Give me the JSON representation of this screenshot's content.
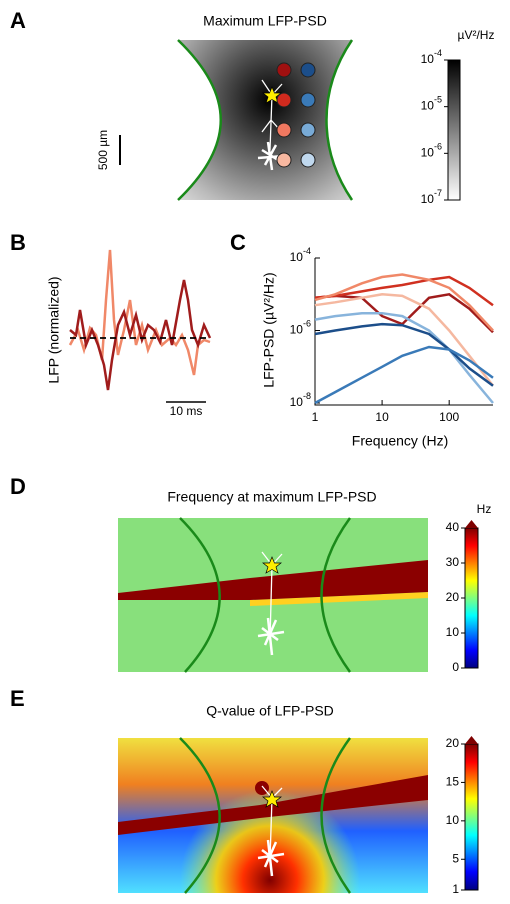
{
  "chart_data": [
    {
      "type": "heatmap",
      "label": "A",
      "title": "Maximum LFP-PSD",
      "scale_bar": "500 µm",
      "colorbar_label": "µV²/Hz",
      "log": true,
      "clim": [
        1e-07,
        0.0001
      ],
      "colorbar_ticks": [
        {
          "value": 0.0001,
          "label": "10",
          "exponent": "-4"
        },
        {
          "value": 1e-05,
          "label": "10",
          "exponent": "-5"
        },
        {
          "value": 1e-06,
          "label": "10",
          "exponent": "-6"
        },
        {
          "value": 1e-07,
          "label": "10",
          "exponent": "-7"
        }
      ]
    },
    {
      "type": "trace",
      "label": "B",
      "ylabel": "LFP (normalized)",
      "scale_bar": "10 ms"
    },
    {
      "type": "line",
      "label": "C",
      "ylabel": "LFP-PSD (µV²/Hz)",
      "xlabel": "Frequency (Hz)",
      "log_x": true,
      "log_y": true,
      "xlim": [
        1,
        450
      ],
      "ylim": [
        1e-08,
        0.0001
      ],
      "xticks": [
        1,
        10,
        100
      ],
      "yticks": [
        {
          "value": 1e-08,
          "label": "10",
          "exponent": "-8"
        },
        {
          "value": 1e-06,
          "label": "10",
          "exponent": "-6"
        },
        {
          "value": 0.0001,
          "label": "10",
          "exponent": "-4"
        }
      ],
      "x": [
        1,
        2,
        5,
        10,
        20,
        50,
        100,
        200,
        450
      ],
      "series": [
        {
          "color": "#a01c1c",
          "values": [
            8e-06,
            9e-06,
            8e-06,
            2.5e-06,
            1.5e-06,
            8e-06,
            1e-05,
            4e-06,
            9e-07
          ]
        },
        {
          "color": "#d03020",
          "values": [
            8e-06,
            9e-06,
            1.2e-05,
            1.5e-05,
            1.8e-05,
            2.5e-05,
            3e-05,
            1.5e-05,
            5e-06
          ]
        },
        {
          "color": "#f08868",
          "values": [
            7e-06,
            1e-05,
            2e-05,
            3e-05,
            3.5e-05,
            2.5e-05,
            1.5e-05,
            5e-06,
            1e-06
          ]
        },
        {
          "color": "#f5b8a0",
          "values": [
            5e-06,
            6e-06,
            8e-06,
            1e-05,
            9e-06,
            4e-06,
            1e-06,
            2e-07,
            3e-08
          ]
        },
        {
          "color": "#88b4dc",
          "values": [
            2e-06,
            2.5e-06,
            3e-06,
            3e-06,
            2.5e-06,
            1e-06,
            3e-07,
            6e-08,
            1e-08
          ]
        },
        {
          "color": "#1c4e8a",
          "values": [
            8e-07,
            1e-06,
            1.3e-06,
            1.5e-06,
            1.4e-06,
            8e-07,
            3e-07,
            9e-08,
            3e-08
          ]
        },
        {
          "color": "#3a7ab8",
          "values": [
            1e-08,
            2e-08,
            5e-08,
            1e-07,
            2e-07,
            3.5e-07,
            3e-07,
            1.5e-07,
            5e-08
          ]
        }
      ]
    },
    {
      "type": "heatmap",
      "label": "D",
      "title": "Frequency at maximum LFP-PSD",
      "colorbar_label": "Hz",
      "log": false,
      "clim": [
        0,
        40
      ],
      "colorbar_ticks": [
        0,
        10,
        20,
        30,
        40
      ]
    },
    {
      "type": "heatmap",
      "label": "E",
      "title": "Q-value of LFP-PSD",
      "log": false,
      "clim": [
        1,
        20
      ],
      "colorbar_ticks": [
        1,
        5,
        10,
        15,
        20
      ]
    }
  ]
}
